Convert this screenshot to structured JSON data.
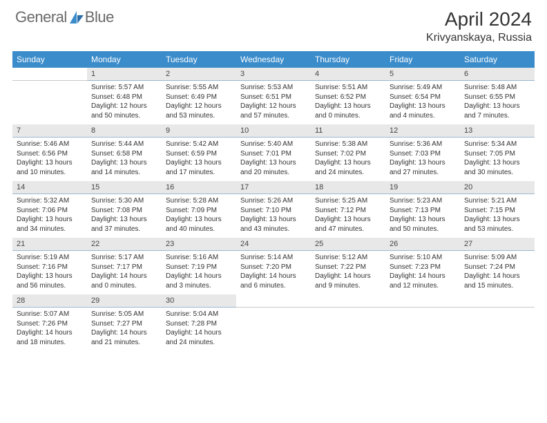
{
  "brand": {
    "name_part1": "General",
    "name_part2": "Blue"
  },
  "title": "April 2024",
  "location": "Krivyanskaya, Russia",
  "day_names": [
    "Sunday",
    "Monday",
    "Tuesday",
    "Wednesday",
    "Thursday",
    "Friday",
    "Saturday"
  ],
  "header_bg": "#3b8ccb",
  "header_fg": "#ffffff",
  "daynum_bg": "#e8e8e8",
  "daynum_border": "#9ab7d0",
  "text_color": "#333333",
  "logo_color": "#3b8ccb",
  "logo_text_color": "#6a6a6a",
  "fonts": {
    "title_size": 28,
    "location_size": 16,
    "dayheader_size": 12,
    "detail_size": 10
  },
  "weeks": [
    [
      null,
      {
        "n": "1",
        "sr": "Sunrise: 5:57 AM",
        "ss": "Sunset: 6:48 PM",
        "d1": "Daylight: 12 hours",
        "d2": "and 50 minutes."
      },
      {
        "n": "2",
        "sr": "Sunrise: 5:55 AM",
        "ss": "Sunset: 6:49 PM",
        "d1": "Daylight: 12 hours",
        "d2": "and 53 minutes."
      },
      {
        "n": "3",
        "sr": "Sunrise: 5:53 AM",
        "ss": "Sunset: 6:51 PM",
        "d1": "Daylight: 12 hours",
        "d2": "and 57 minutes."
      },
      {
        "n": "4",
        "sr": "Sunrise: 5:51 AM",
        "ss": "Sunset: 6:52 PM",
        "d1": "Daylight: 13 hours",
        "d2": "and 0 minutes."
      },
      {
        "n": "5",
        "sr": "Sunrise: 5:49 AM",
        "ss": "Sunset: 6:54 PM",
        "d1": "Daylight: 13 hours",
        "d2": "and 4 minutes."
      },
      {
        "n": "6",
        "sr": "Sunrise: 5:48 AM",
        "ss": "Sunset: 6:55 PM",
        "d1": "Daylight: 13 hours",
        "d2": "and 7 minutes."
      }
    ],
    [
      {
        "n": "7",
        "sr": "Sunrise: 5:46 AM",
        "ss": "Sunset: 6:56 PM",
        "d1": "Daylight: 13 hours",
        "d2": "and 10 minutes."
      },
      {
        "n": "8",
        "sr": "Sunrise: 5:44 AM",
        "ss": "Sunset: 6:58 PM",
        "d1": "Daylight: 13 hours",
        "d2": "and 14 minutes."
      },
      {
        "n": "9",
        "sr": "Sunrise: 5:42 AM",
        "ss": "Sunset: 6:59 PM",
        "d1": "Daylight: 13 hours",
        "d2": "and 17 minutes."
      },
      {
        "n": "10",
        "sr": "Sunrise: 5:40 AM",
        "ss": "Sunset: 7:01 PM",
        "d1": "Daylight: 13 hours",
        "d2": "and 20 minutes."
      },
      {
        "n": "11",
        "sr": "Sunrise: 5:38 AM",
        "ss": "Sunset: 7:02 PM",
        "d1": "Daylight: 13 hours",
        "d2": "and 24 minutes."
      },
      {
        "n": "12",
        "sr": "Sunrise: 5:36 AM",
        "ss": "Sunset: 7:03 PM",
        "d1": "Daylight: 13 hours",
        "d2": "and 27 minutes."
      },
      {
        "n": "13",
        "sr": "Sunrise: 5:34 AM",
        "ss": "Sunset: 7:05 PM",
        "d1": "Daylight: 13 hours",
        "d2": "and 30 minutes."
      }
    ],
    [
      {
        "n": "14",
        "sr": "Sunrise: 5:32 AM",
        "ss": "Sunset: 7:06 PM",
        "d1": "Daylight: 13 hours",
        "d2": "and 34 minutes."
      },
      {
        "n": "15",
        "sr": "Sunrise: 5:30 AM",
        "ss": "Sunset: 7:08 PM",
        "d1": "Daylight: 13 hours",
        "d2": "and 37 minutes."
      },
      {
        "n": "16",
        "sr": "Sunrise: 5:28 AM",
        "ss": "Sunset: 7:09 PM",
        "d1": "Daylight: 13 hours",
        "d2": "and 40 minutes."
      },
      {
        "n": "17",
        "sr": "Sunrise: 5:26 AM",
        "ss": "Sunset: 7:10 PM",
        "d1": "Daylight: 13 hours",
        "d2": "and 43 minutes."
      },
      {
        "n": "18",
        "sr": "Sunrise: 5:25 AM",
        "ss": "Sunset: 7:12 PM",
        "d1": "Daylight: 13 hours",
        "d2": "and 47 minutes."
      },
      {
        "n": "19",
        "sr": "Sunrise: 5:23 AM",
        "ss": "Sunset: 7:13 PM",
        "d1": "Daylight: 13 hours",
        "d2": "and 50 minutes."
      },
      {
        "n": "20",
        "sr": "Sunrise: 5:21 AM",
        "ss": "Sunset: 7:15 PM",
        "d1": "Daylight: 13 hours",
        "d2": "and 53 minutes."
      }
    ],
    [
      {
        "n": "21",
        "sr": "Sunrise: 5:19 AM",
        "ss": "Sunset: 7:16 PM",
        "d1": "Daylight: 13 hours",
        "d2": "and 56 minutes."
      },
      {
        "n": "22",
        "sr": "Sunrise: 5:17 AM",
        "ss": "Sunset: 7:17 PM",
        "d1": "Daylight: 14 hours",
        "d2": "and 0 minutes."
      },
      {
        "n": "23",
        "sr": "Sunrise: 5:16 AM",
        "ss": "Sunset: 7:19 PM",
        "d1": "Daylight: 14 hours",
        "d2": "and 3 minutes."
      },
      {
        "n": "24",
        "sr": "Sunrise: 5:14 AM",
        "ss": "Sunset: 7:20 PM",
        "d1": "Daylight: 14 hours",
        "d2": "and 6 minutes."
      },
      {
        "n": "25",
        "sr": "Sunrise: 5:12 AM",
        "ss": "Sunset: 7:22 PM",
        "d1": "Daylight: 14 hours",
        "d2": "and 9 minutes."
      },
      {
        "n": "26",
        "sr": "Sunrise: 5:10 AM",
        "ss": "Sunset: 7:23 PM",
        "d1": "Daylight: 14 hours",
        "d2": "and 12 minutes."
      },
      {
        "n": "27",
        "sr": "Sunrise: 5:09 AM",
        "ss": "Sunset: 7:24 PM",
        "d1": "Daylight: 14 hours",
        "d2": "and 15 minutes."
      }
    ],
    [
      {
        "n": "28",
        "sr": "Sunrise: 5:07 AM",
        "ss": "Sunset: 7:26 PM",
        "d1": "Daylight: 14 hours",
        "d2": "and 18 minutes."
      },
      {
        "n": "29",
        "sr": "Sunrise: 5:05 AM",
        "ss": "Sunset: 7:27 PM",
        "d1": "Daylight: 14 hours",
        "d2": "and 21 minutes."
      },
      {
        "n": "30",
        "sr": "Sunrise: 5:04 AM",
        "ss": "Sunset: 7:28 PM",
        "d1": "Daylight: 14 hours",
        "d2": "and 24 minutes."
      },
      null,
      null,
      null,
      null
    ]
  ]
}
